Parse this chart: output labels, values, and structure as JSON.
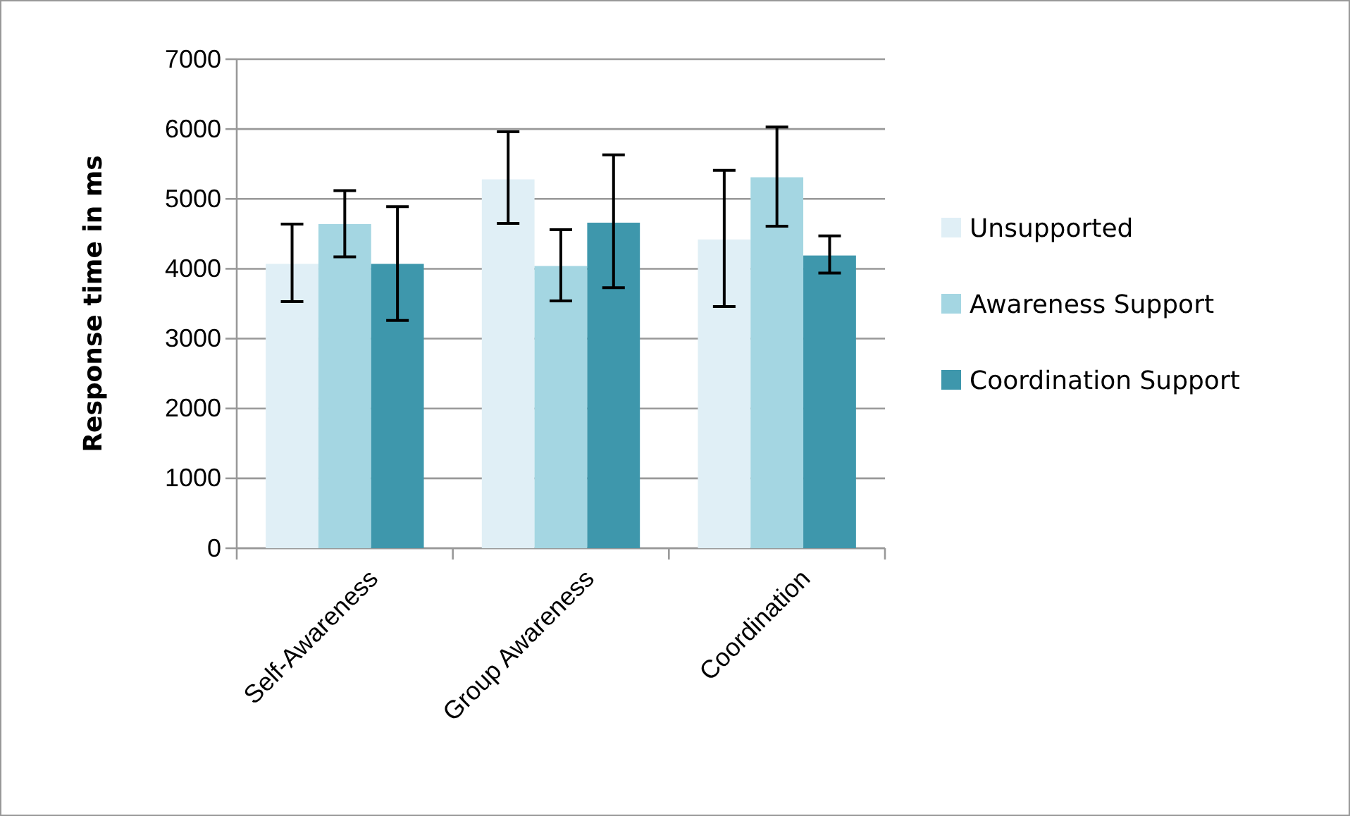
{
  "chart_data": {
    "type": "bar",
    "ylabel": "Response time in ms",
    "categories": [
      "Self-Awareness",
      "Group Awareness",
      "Coordination"
    ],
    "series": [
      {
        "name": "Unsupported",
        "color": "#e0eff6",
        "values": [
          4070,
          5280,
          4420
        ],
        "errors": [
          [
            3530,
            4640
          ],
          [
            4650,
            5960
          ],
          [
            3460,
            5410
          ]
        ]
      },
      {
        "name": "Awareness Support",
        "color": "#a4d6e2",
        "values": [
          4640,
          4040,
          5310
        ],
        "errors": [
          [
            4170,
            5120
          ],
          [
            3540,
            4560
          ],
          [
            4610,
            6030
          ]
        ]
      },
      {
        "name": "Coordination Support",
        "color": "#3e97ac",
        "values": [
          4070,
          4660,
          4190
        ],
        "errors": [
          [
            3260,
            4890
          ],
          [
            3730,
            5630
          ],
          [
            3940,
            4470
          ]
        ]
      }
    ],
    "ylim": [
      0,
      7000
    ],
    "yticks": [
      0,
      1000,
      2000,
      3000,
      4000,
      5000,
      6000,
      7000
    ],
    "grid": "y",
    "legend": "right"
  }
}
